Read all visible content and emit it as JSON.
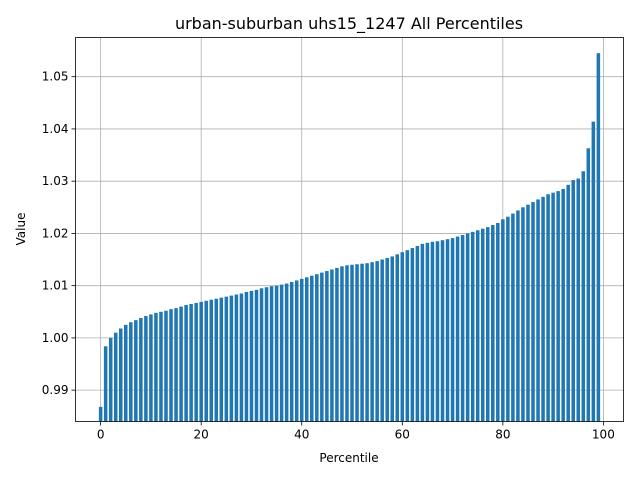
{
  "chart_data": {
    "type": "bar",
    "title": "urban-suburban uhs15_1247  All Percentiles",
    "xlabel": "Percentile",
    "ylabel": "Value",
    "xlim": [
      -5,
      104
    ],
    "ylim": [
      0.984,
      1.0575
    ],
    "x_ticks": [
      0,
      20,
      40,
      60,
      80,
      100
    ],
    "y_ticks": [
      0.99,
      1.0,
      1.01,
      1.02,
      1.03,
      1.04,
      1.05
    ],
    "y_tick_labels": [
      "0.99",
      "1.00",
      "1.01",
      "1.02",
      "1.03",
      "1.04",
      "1.05"
    ],
    "grid": true,
    "bar_color": "#1f77b4",
    "series": [
      {
        "x": [
          0,
          1,
          2,
          3,
          4,
          5,
          6,
          7,
          8,
          9,
          10,
          11,
          12,
          13,
          14,
          15,
          16,
          17,
          18,
          19,
          20,
          21,
          22,
          23,
          24,
          25,
          26,
          27,
          28,
          29,
          30,
          31,
          32,
          33,
          34,
          35,
          36,
          37,
          38,
          39,
          40,
          41,
          42,
          43,
          44,
          45,
          46,
          47,
          48,
          49,
          50,
          51,
          52,
          53,
          54,
          55,
          56,
          57,
          58,
          59,
          60,
          61,
          62,
          63,
          64,
          65,
          66,
          67,
          68,
          69,
          70,
          71,
          72,
          73,
          74,
          75,
          76,
          77,
          78,
          79,
          80,
          81,
          82,
          83,
          84,
          85,
          86,
          87,
          88,
          89,
          90,
          91,
          92,
          93,
          94,
          95,
          96,
          97,
          98,
          99
        ],
        "values": [
          0.9868,
          0.9984,
          1.0,
          1.001,
          1.0018,
          1.0025,
          1.003,
          1.0034,
          1.0038,
          1.0042,
          1.0045,
          1.0048,
          1.005,
          1.0052,
          1.0055,
          1.0057,
          1.006,
          1.0063,
          1.0065,
          1.0067,
          1.0069,
          1.0071,
          1.0073,
          1.0075,
          1.0077,
          1.0079,
          1.0081,
          1.0083,
          1.0085,
          1.0088,
          1.009,
          1.0092,
          1.0095,
          1.0097,
          1.0099,
          1.01,
          1.0102,
          1.0104,
          1.0107,
          1.011,
          1.0113,
          1.0116,
          1.0119,
          1.0122,
          1.0125,
          1.0128,
          1.0131,
          1.0134,
          1.0137,
          1.0139,
          1.014,
          1.0141,
          1.0142,
          1.0143,
          1.0145,
          1.0147,
          1.015,
          1.0153,
          1.0156,
          1.016,
          1.0164,
          1.0168,
          1.0172,
          1.0176,
          1.018,
          1.0182,
          1.0184,
          1.0185,
          1.0187,
          1.0189,
          1.0191,
          1.0194,
          1.0197,
          1.02,
          1.0203,
          1.0206,
          1.0209,
          1.0212,
          1.0216,
          1.022,
          1.0227,
          1.0232,
          1.0238,
          1.0244,
          1.025,
          1.0255,
          1.026,
          1.0265,
          1.027,
          1.0275,
          1.0278,
          1.0281,
          1.0285,
          1.0293,
          1.0302,
          1.0305,
          1.0319,
          1.0363,
          1.0414,
          1.0545
        ]
      }
    ]
  }
}
